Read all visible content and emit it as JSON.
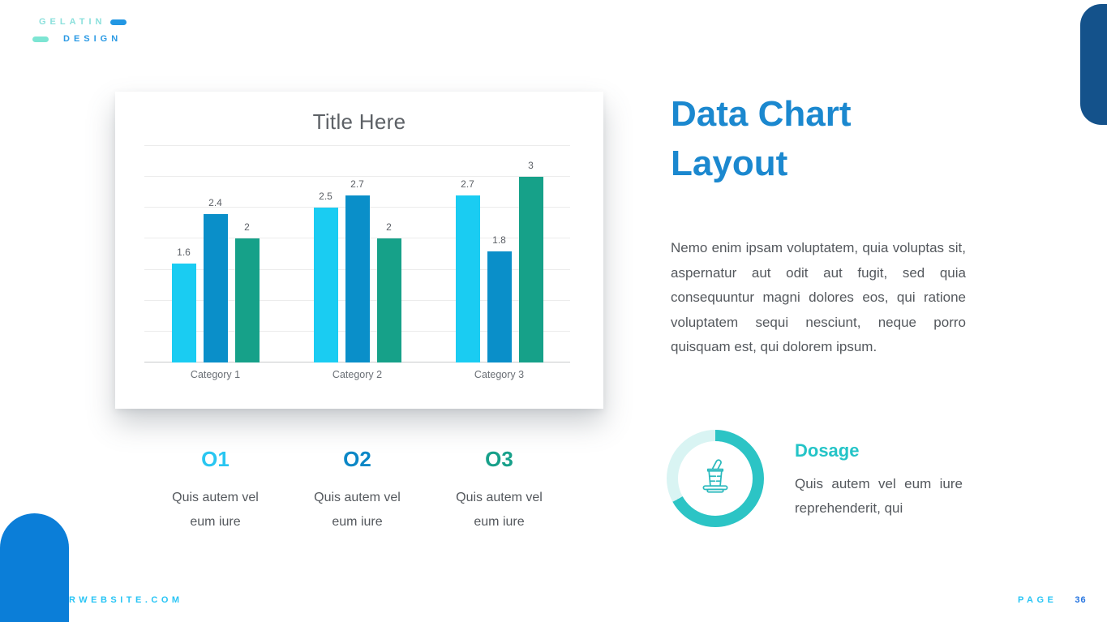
{
  "logo": {
    "line1": "GELATIN",
    "line2": "DESIGN"
  },
  "heading": {
    "title": "Data Chart Layout",
    "lines": [
      "Data Chart",
      "Layout"
    ]
  },
  "paragraph": "Nemo enim ipsam voluptatem, quia voluptas sit, aspernatur aut odit aut fugit, sed quia consequuntur magni dolores eos, qui ratione voluptatem sequi nesciunt, neque porro quisquam est, qui dolorem ipsum.",
  "chart_data": {
    "type": "bar",
    "title": "Title Here",
    "categories": [
      "Category 1",
      "Category 2",
      "Category 3"
    ],
    "series": [
      {
        "name": "series-1",
        "color": "#1accf2",
        "values": [
          1.6,
          2.5,
          2.7
        ]
      },
      {
        "name": "series-2",
        "color": "#0a8fc9",
        "values": [
          2.4,
          2.7,
          1.8
        ]
      },
      {
        "name": "series-3",
        "color": "#16a189",
        "values": [
          2,
          2,
          3
        ]
      }
    ],
    "xlabel": "",
    "ylabel": "",
    "ylim": [
      0,
      3.5
    ],
    "gridline_step": 0.5,
    "grid": true,
    "legend": "none",
    "value_labels": true
  },
  "objectives": [
    {
      "label": "O1",
      "color": "#29c6f1",
      "text": "Quis autem vel eum iure"
    },
    {
      "label": "O2",
      "color": "#0b87c6",
      "text": "Quis autem vel eum iure"
    },
    {
      "label": "O3",
      "color": "#17a08a",
      "text": "Quis autem vel eum iure"
    }
  ],
  "dosage": {
    "title": "Dosage",
    "text": "Quis autem vel eum iure reprehenderit, qui",
    "donut_percent": 67,
    "icon": "mortar-pestle-icon",
    "colors": {
      "ring": "#2cc4c5",
      "ring_bg": "#d9f4f3",
      "icon_stroke": "#2ab9bd",
      "title": "#24c4c7"
    }
  },
  "footer": {
    "website": "RWEBSITE.COM",
    "page_label": "PAGE",
    "page_number": "36"
  },
  "colors": {
    "heading_blue": "#1b88cf",
    "bottom_left_shape": "#0b7ed8",
    "top_right_shape": "#14528b",
    "logo_text1": "#8be0dc",
    "logo_text2": "#2b9ae4"
  }
}
